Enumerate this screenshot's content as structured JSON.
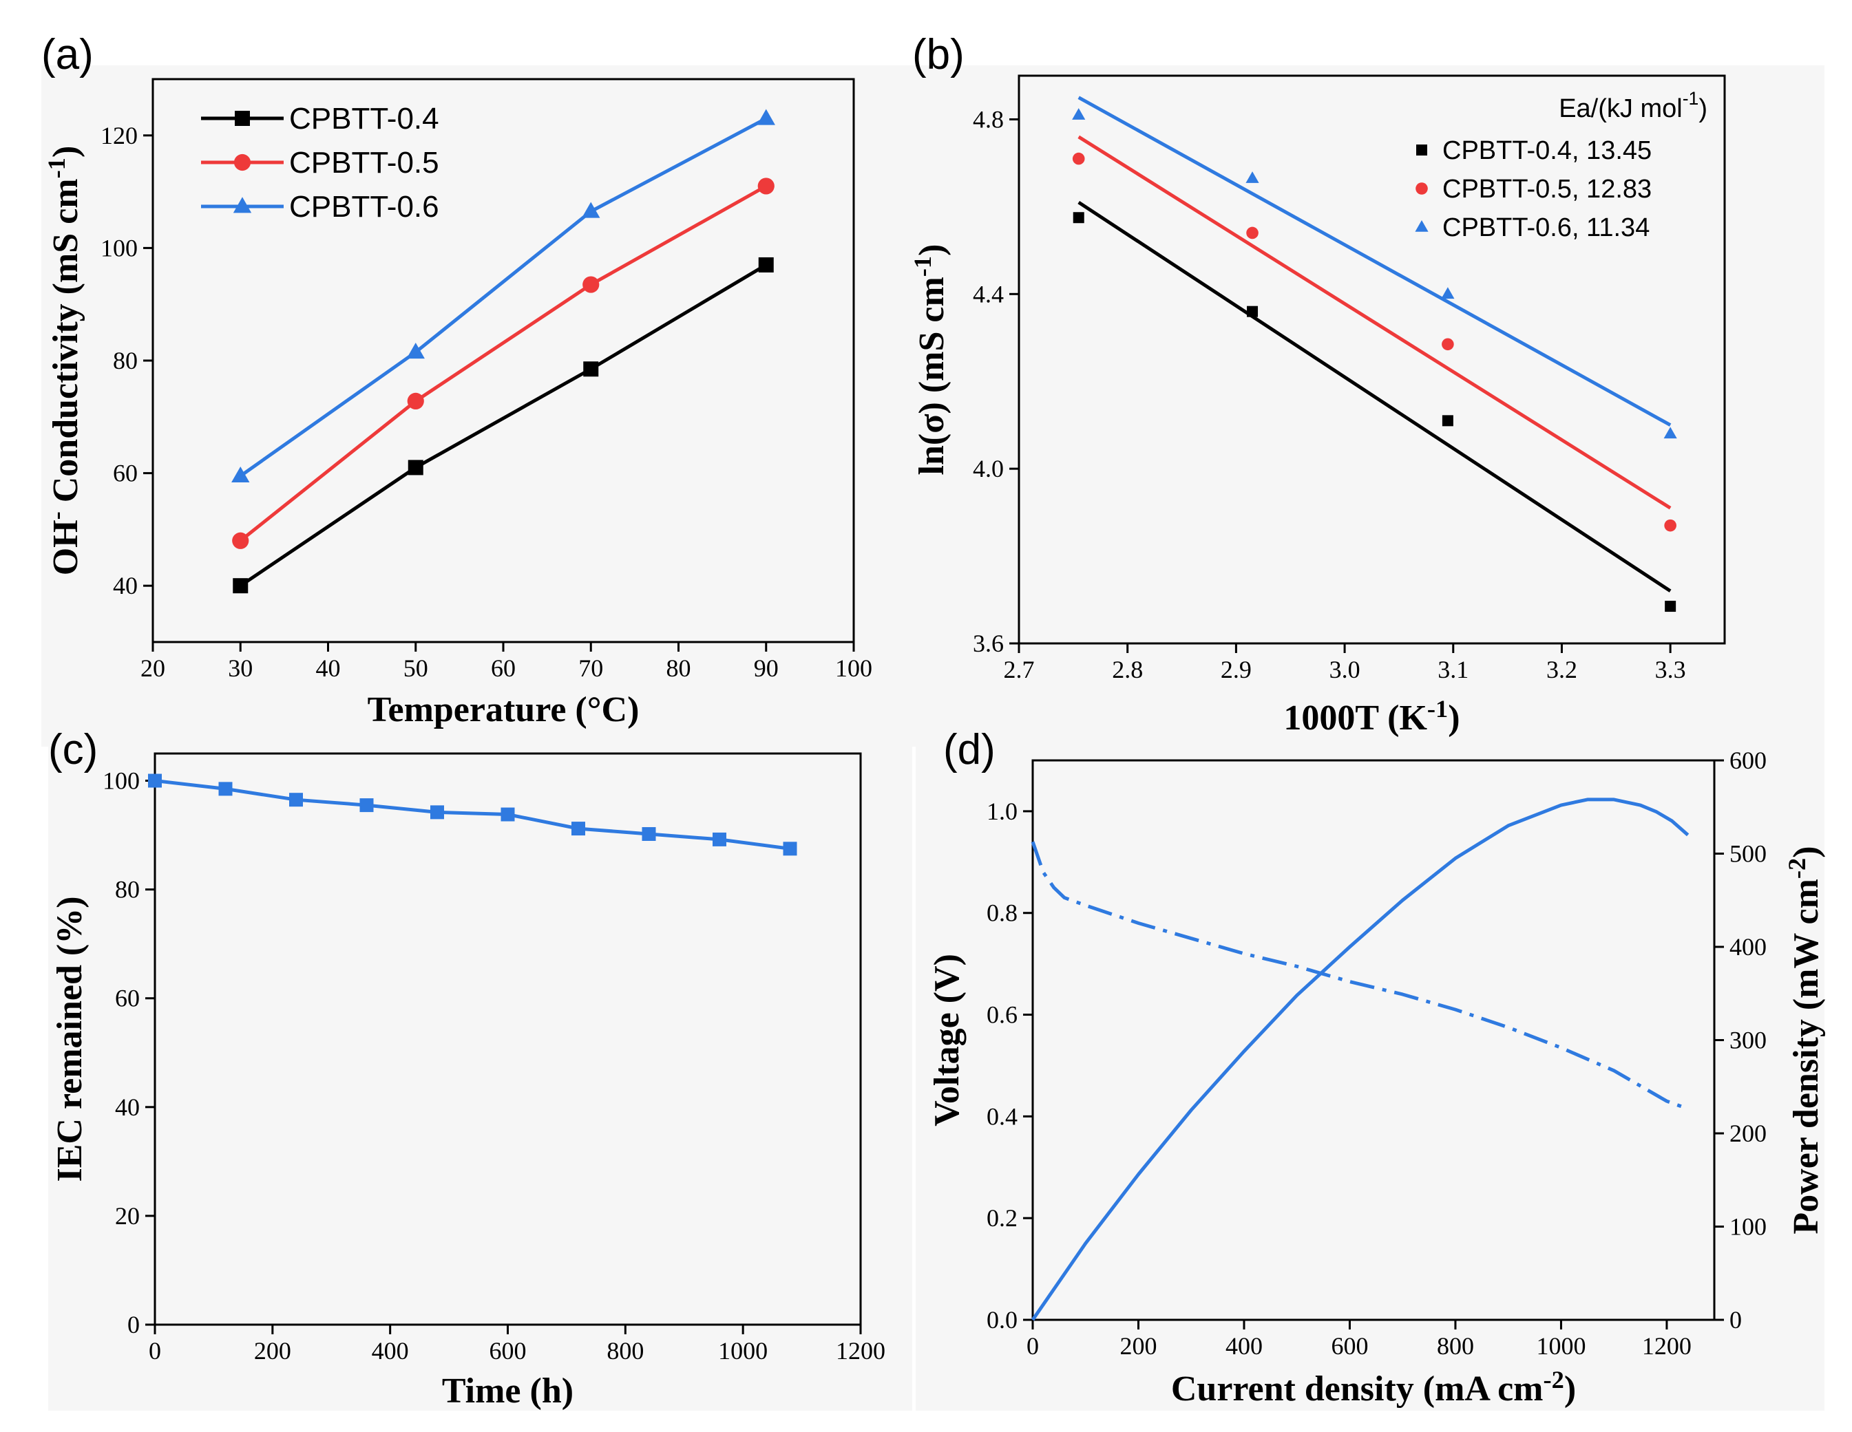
{
  "colors": {
    "black": "#000000",
    "red": "#ee3a3a",
    "blue": "#2f7ae0"
  },
  "chart_data": [
    {
      "id": "a",
      "panel_label": "(a)",
      "type": "line",
      "xlabel": "Temperature (°C)",
      "ylabel_parts": [
        "OH",
        "-",
        " Conductivity (mS cm",
        "-1",
        ")"
      ],
      "xlim": [
        20,
        100
      ],
      "ylim": [
        30,
        130
      ],
      "xticks": [
        "20",
        "30",
        "40",
        "50",
        "60",
        "70",
        "80",
        "90",
        "100"
      ],
      "yticks": [
        "40",
        "60",
        "80",
        "100",
        "120"
      ],
      "legend": "top-left",
      "series": [
        {
          "name": "CPBTT-0.4",
          "color": "#000000",
          "marker": "square",
          "x": [
            30,
            50,
            70,
            90
          ],
          "y": [
            40,
            61,
            78.5,
            97
          ]
        },
        {
          "name": "CPBTT-0.5",
          "color": "#ee3a3a",
          "marker": "circle",
          "x": [
            30,
            50,
            70,
            90
          ],
          "y": [
            48,
            72.8,
            93.5,
            111
          ]
        },
        {
          "name": "CPBTT-0.6",
          "color": "#2f7ae0",
          "marker": "triangle",
          "x": [
            30,
            50,
            70,
            90
          ],
          "y": [
            59.5,
            81.5,
            106.5,
            123
          ]
        }
      ]
    },
    {
      "id": "b",
      "panel_label": "(b)",
      "type": "scatter",
      "xlabel_parts": [
        "1000T (K",
        "-1",
        ")"
      ],
      "ylabel": "ln(σ) (mS cm",
      "ylabel_sup": "-1",
      "ylabel_end": ")",
      "xlim": [
        2.7,
        3.35
      ],
      "ylim": [
        3.6,
        4.9
      ],
      "xticks": [
        "2.7",
        "2.8",
        "2.9",
        "3.0",
        "3.1",
        "3.2",
        "3.3"
      ],
      "yticks": [
        "3.6",
        "4.0",
        "4.4",
        "4.8"
      ],
      "legend_title_parts": [
        "Ea/(kJ mol",
        "-1",
        ")"
      ],
      "legend": "top-right",
      "series": [
        {
          "name": "CPBTT-0.4, 13.45",
          "color": "#000000",
          "marker": "square",
          "x": [
            2.755,
            2.915,
            3.095,
            3.3
          ],
          "y": [
            4.575,
            4.36,
            4.11,
            3.685
          ],
          "fit": [
            [
              2.755,
              4.61
            ],
            [
              3.3,
              3.72
            ]
          ]
        },
        {
          "name": "CPBTT-0.5, 12.83",
          "color": "#ee3a3a",
          "marker": "circle",
          "x": [
            2.755,
            2.915,
            3.095,
            3.3
          ],
          "y": [
            4.71,
            4.54,
            4.285,
            3.87
          ],
          "fit": [
            [
              2.755,
              4.76
            ],
            [
              3.3,
              3.91
            ]
          ]
        },
        {
          "name": "CPBTT-0.6, 11.34",
          "color": "#2f7ae0",
          "marker": "triangle",
          "x": [
            2.755,
            2.915,
            3.095,
            3.3
          ],
          "y": [
            4.81,
            4.665,
            4.4,
            4.08
          ],
          "fit": [
            [
              2.755,
              4.85
            ],
            [
              3.3,
              4.1
            ]
          ]
        }
      ]
    },
    {
      "id": "c",
      "panel_label": "(c)",
      "type": "line",
      "xlabel": "Time (h)",
      "ylabel": "IEC remained (%)",
      "xlim": [
        0,
        1200
      ],
      "ylim": [
        0,
        105
      ],
      "xticks": [
        "0",
        "200",
        "400",
        "600",
        "800",
        "1000",
        "1200"
      ],
      "yticks": [
        "0",
        "20",
        "40",
        "60",
        "80",
        "100"
      ],
      "series": [
        {
          "name": "IEC",
          "color": "#2f7ae0",
          "marker": "square",
          "x": [
            0,
            120,
            240,
            360,
            480,
            600,
            720,
            840,
            960,
            1080
          ],
          "y": [
            100,
            98.5,
            96.5,
            95.5,
            94.2,
            93.8,
            91.2,
            90.2,
            89.2,
            87.5
          ]
        }
      ]
    },
    {
      "id": "d",
      "panel_label": "(d)",
      "type": "line",
      "xlabel_parts": [
        "Current density (mA cm",
        "-2",
        ")"
      ],
      "ylabel": "Voltage (V)",
      "ylabel_right_parts": [
        "Power density (mW cm",
        "-2",
        ")"
      ],
      "xlim": [
        0,
        1290
      ],
      "ylim": [
        0,
        1.1
      ],
      "ylim_right": [
        0,
        600
      ],
      "xticks": [
        "0",
        "200",
        "400",
        "600",
        "800",
        "1000",
        "1200"
      ],
      "yticks": [
        "0.0",
        "0.2",
        "0.4",
        "0.6",
        "0.8",
        "1.0"
      ],
      "yticks_right": [
        "0",
        "100",
        "200",
        "300",
        "400",
        "500",
        "600"
      ],
      "series": [
        {
          "name": "Voltage",
          "axis": "left",
          "color": "#2f7ae0",
          "style": "dashdot",
          "x": [
            0,
            10,
            20,
            40,
            60,
            100,
            200,
            300,
            400,
            500,
            600,
            700,
            800,
            900,
            1000,
            1100,
            1150,
            1200,
            1240
          ],
          "y": [
            0.94,
            0.91,
            0.88,
            0.85,
            0.83,
            0.815,
            0.78,
            0.75,
            0.72,
            0.695,
            0.665,
            0.64,
            0.61,
            0.575,
            0.535,
            0.49,
            0.46,
            0.43,
            0.415
          ]
        },
        {
          "name": "Power density",
          "axis": "right",
          "color": "#2f7ae0",
          "style": "solid",
          "x": [
            0,
            100,
            200,
            300,
            400,
            500,
            600,
            700,
            800,
            900,
            1000,
            1050,
            1100,
            1150,
            1180,
            1210,
            1240
          ],
          "y": [
            0,
            82,
            156,
            225,
            288,
            348,
            400,
            450,
            495,
            530,
            552,
            558,
            558,
            552,
            545,
            535,
            520
          ]
        }
      ]
    }
  ]
}
